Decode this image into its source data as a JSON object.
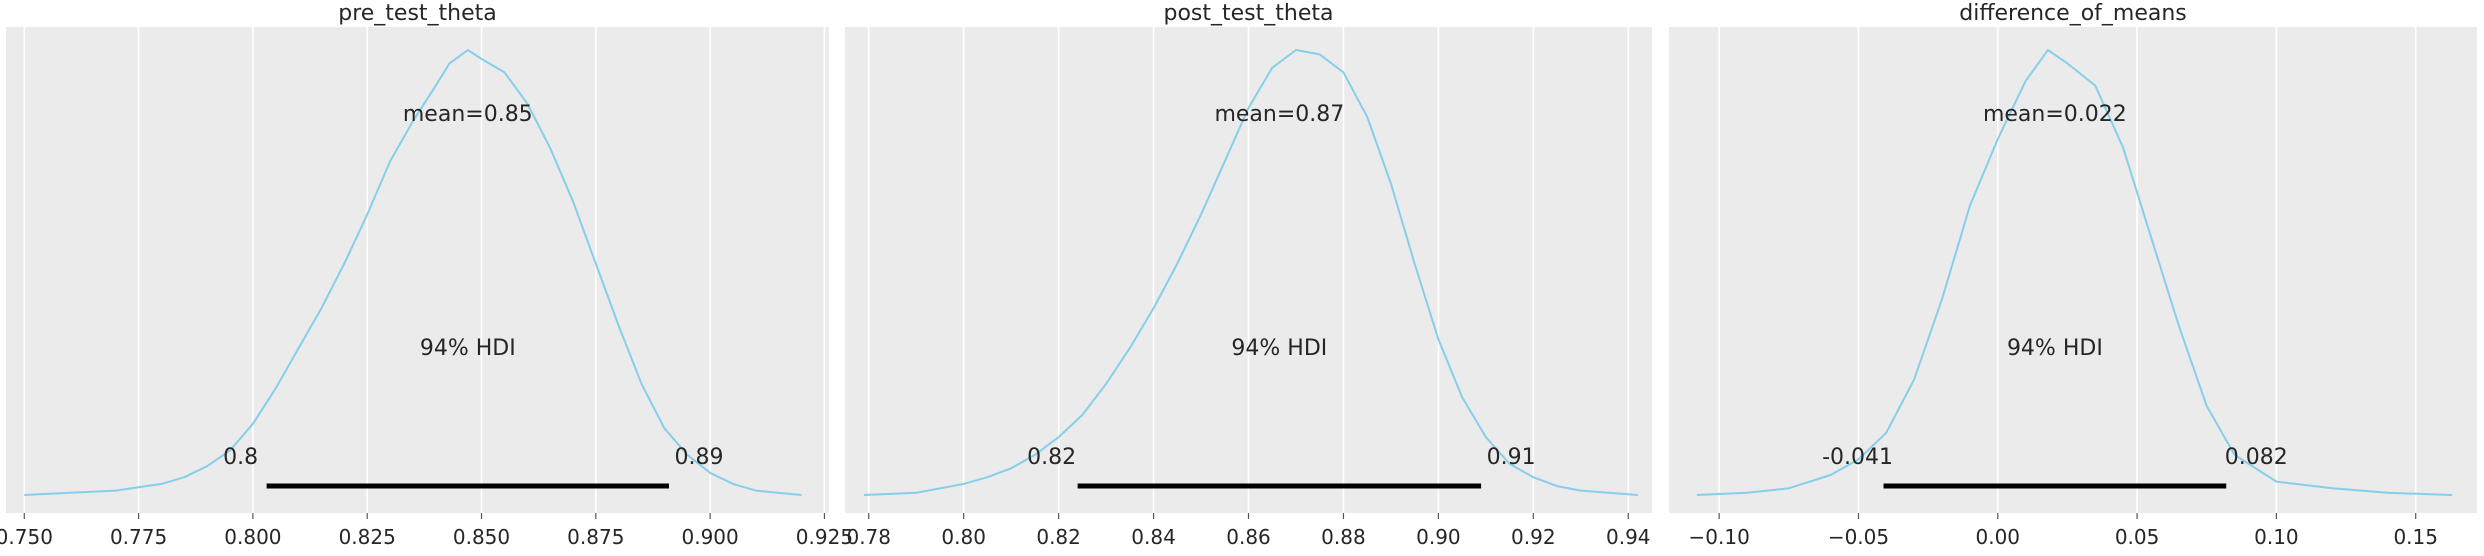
{
  "chart_data": [
    {
      "type": "area",
      "title": "pre_test_theta",
      "mean_label": "mean=0.85",
      "hdi_label": "94% HDI",
      "hdi": [
        0.803,
        0.891
      ],
      "hdi_low_label": "0.8",
      "hdi_high_label": "0.89",
      "xlim": [
        0.746,
        0.926
      ],
      "xticks": [
        0.75,
        0.775,
        0.8,
        0.825,
        0.85,
        0.875,
        0.9,
        0.925
      ],
      "xtick_labels": [
        "0.750",
        "0.775",
        "0.800",
        "0.825",
        "0.850",
        "0.875",
        "0.900",
        "0.925"
      ],
      "density": {
        "x": [
          0.75,
          0.76,
          0.77,
          0.78,
          0.785,
          0.79,
          0.795,
          0.8,
          0.805,
          0.81,
          0.815,
          0.82,
          0.825,
          0.83,
          0.835,
          0.84,
          0.843,
          0.847,
          0.85,
          0.855,
          0.86,
          0.865,
          0.87,
          0.875,
          0.88,
          0.885,
          0.89,
          0.895,
          0.9,
          0.905,
          0.91,
          0.92
        ],
        "y": [
          0.0,
          0.005,
          0.01,
          0.025,
          0.04,
          0.065,
          0.1,
          0.16,
          0.24,
          0.33,
          0.42,
          0.52,
          0.63,
          0.75,
          0.84,
          0.92,
          0.97,
          1.0,
          0.98,
          0.95,
          0.88,
          0.78,
          0.66,
          0.52,
          0.38,
          0.25,
          0.15,
          0.09,
          0.05,
          0.025,
          0.01,
          0.0
        ]
      },
      "grid": true
    },
    {
      "type": "area",
      "title": "post_test_theta",
      "mean_label": "mean=0.87",
      "hdi_label": "94% HDI",
      "hdi": [
        0.824,
        0.909
      ],
      "hdi_low_label": "0.82",
      "hdi_high_label": "0.91",
      "xlim": [
        0.775,
        0.945
      ],
      "xticks": [
        0.78,
        0.8,
        0.82,
        0.84,
        0.86,
        0.88,
        0.9,
        0.92,
        0.94
      ],
      "xtick_labels": [
        "0.78",
        "0.80",
        "0.82",
        "0.84",
        "0.86",
        "0.88",
        "0.90",
        "0.92",
        "0.94"
      ],
      "density": {
        "x": [
          0.779,
          0.79,
          0.8,
          0.805,
          0.81,
          0.815,
          0.82,
          0.825,
          0.83,
          0.835,
          0.84,
          0.845,
          0.85,
          0.855,
          0.86,
          0.865,
          0.87,
          0.875,
          0.88,
          0.885,
          0.89,
          0.895,
          0.9,
          0.905,
          0.91,
          0.915,
          0.92,
          0.925,
          0.93,
          0.942
        ],
        "y": [
          0.0,
          0.005,
          0.025,
          0.04,
          0.06,
          0.09,
          0.13,
          0.18,
          0.25,
          0.33,
          0.42,
          0.52,
          0.63,
          0.75,
          0.87,
          0.96,
          1.0,
          0.99,
          0.95,
          0.85,
          0.7,
          0.52,
          0.35,
          0.22,
          0.13,
          0.07,
          0.04,
          0.02,
          0.01,
          0.0
        ]
      },
      "grid": true
    },
    {
      "type": "area",
      "title": "difference_of_means",
      "mean_label": "mean=0.022",
      "hdi_label": "94% HDI",
      "hdi": [
        -0.041,
        0.082
      ],
      "hdi_low_label": "-0.041",
      "hdi_high_label": "0.082",
      "xlim": [
        -0.118,
        0.172
      ],
      "xticks": [
        -0.1,
        -0.05,
        0.0,
        0.05,
        0.1,
        0.15
      ],
      "xtick_labels": [
        "−0.10",
        "−0.05",
        "0.00",
        "0.05",
        "0.10",
        "0.15"
      ],
      "density": {
        "x": [
          -0.108,
          -0.09,
          -0.075,
          -0.06,
          -0.05,
          -0.04,
          -0.03,
          -0.02,
          -0.01,
          0.0,
          0.01,
          0.018,
          0.025,
          0.035,
          0.045,
          0.055,
          0.065,
          0.075,
          0.085,
          0.1,
          0.12,
          0.14,
          0.163
        ],
        "y": [
          0.0,
          0.005,
          0.015,
          0.045,
          0.08,
          0.14,
          0.26,
          0.44,
          0.65,
          0.8,
          0.93,
          1.0,
          0.97,
          0.92,
          0.78,
          0.58,
          0.38,
          0.2,
          0.09,
          0.03,
          0.015,
          0.005,
          0.0
        ]
      },
      "grid": true
    }
  ],
  "colors": {
    "background": "#ebebeb",
    "grid": "#ffffff",
    "density_line": "#87ceeb",
    "hdi_bar": "#000000",
    "text": "#262626"
  }
}
